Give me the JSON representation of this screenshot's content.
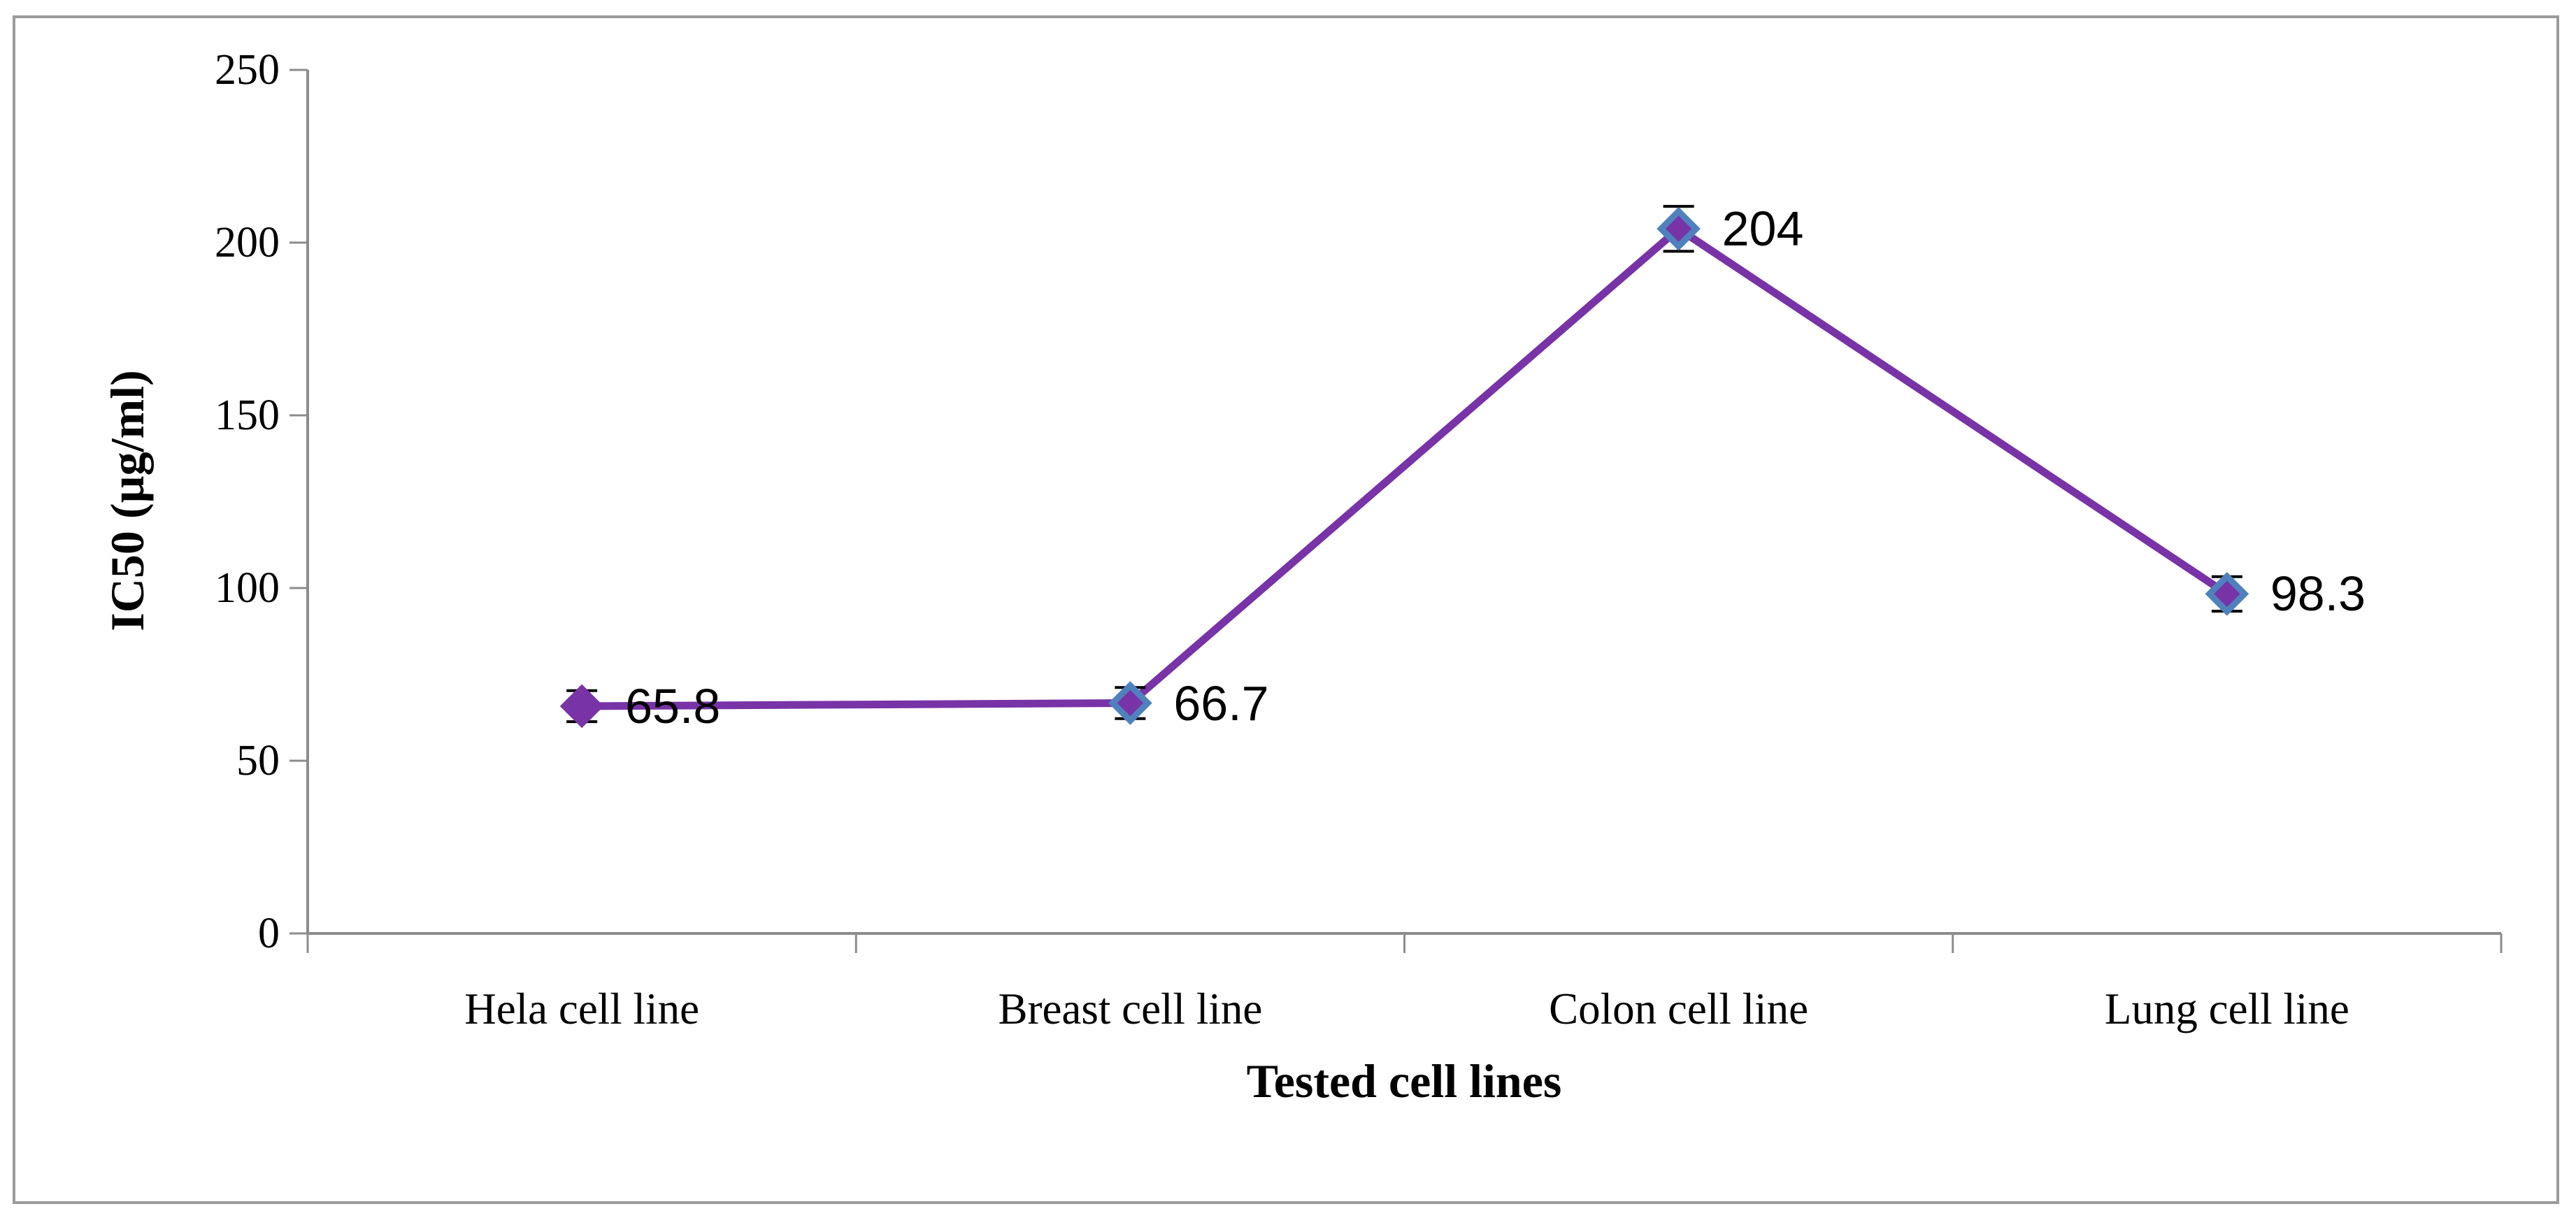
{
  "chart_data": {
    "type": "line",
    "categories": [
      "Hela cell line",
      "Breast cell line",
      "Colon cell line",
      "Lung cell line"
    ],
    "series": [
      {
        "name": "IC50",
        "values": [
          65.8,
          66.7,
          204,
          98.3
        ],
        "error_y": [
          4.5,
          4.5,
          6.5,
          5
        ]
      }
    ],
    "data_labels": [
      "65.8",
      "66.7",
      "204",
      "98.3"
    ],
    "title": "",
    "xlabel": "Tested cell lines",
    "ylabel": "IC50 (µg/ml)",
    "ylim": [
      0,
      250
    ],
    "yticks": [
      0,
      50,
      100,
      150,
      200,
      250
    ],
    "grid": false,
    "legend": false,
    "marker": "diamond",
    "marker_outline_per_point": [
      "#7833a6",
      "#4f81bd",
      "#4f81bd",
      "#4f81bd"
    ],
    "colors": {
      "line": "#7833a6",
      "marker_fill": "#7833a6",
      "marker_outline": "#4f81bd",
      "error_bar": "#000000",
      "axis_line": "#8c8c8c",
      "frame_border": "#9b9b9b",
      "text": "#000000",
      "background": "#ffffff"
    }
  }
}
